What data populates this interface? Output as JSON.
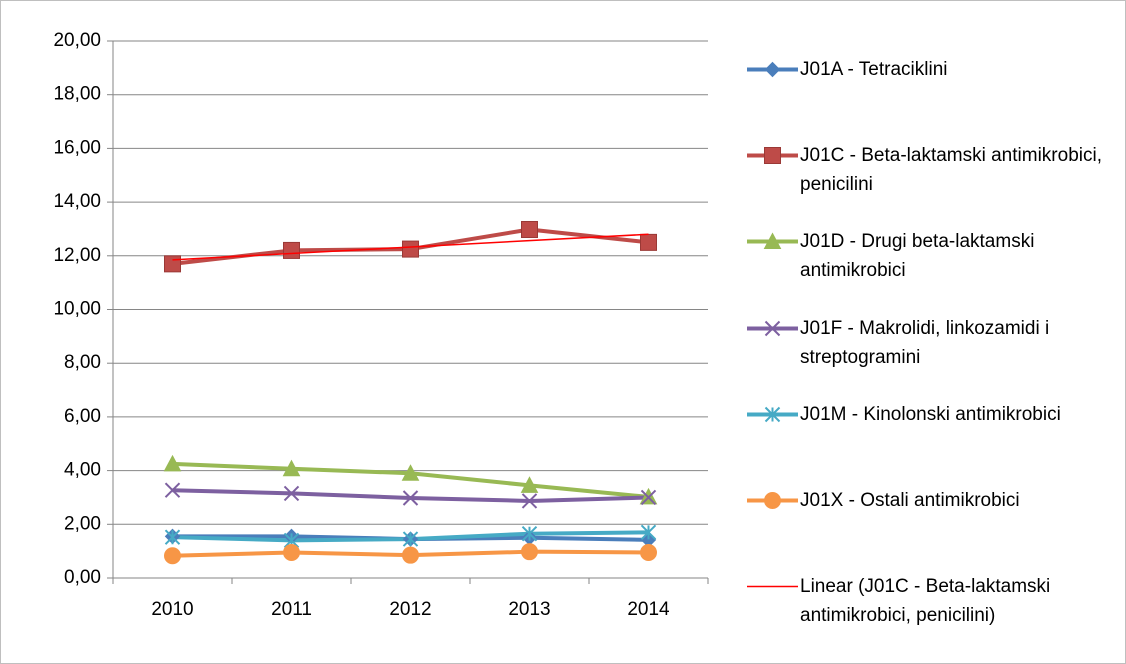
{
  "chart_data": {
    "type": "line",
    "categories": [
      "2010",
      "2011",
      "2012",
      "2013",
      "2014"
    ],
    "series": [
      {
        "name": "J01A - Tetraciklini",
        "color": "#4a7ebb",
        "marker": "diamond",
        "values": [
          1.55,
          1.55,
          1.45,
          1.5,
          1.42
        ]
      },
      {
        "name": "J01C - Beta-laktamski antimikrobici, penicilini",
        "color": "#be4b48",
        "marker": "square",
        "values": [
          11.7,
          12.2,
          12.25,
          12.98,
          12.5
        ]
      },
      {
        "name": "J01D - Drugi beta-laktamski antimikrobici",
        "color": "#98b954",
        "marker": "triangle",
        "values": [
          4.25,
          4.07,
          3.9,
          3.45,
          3.02
        ]
      },
      {
        "name": "J01F - Makrolidi, linkozamidi i streptogramini",
        "color": "#7d60a0",
        "marker": "x",
        "values": [
          3.27,
          3.15,
          2.98,
          2.87,
          3.0
        ]
      },
      {
        "name": "J01M - Kinolonski antimikrobici",
        "color": "#46aac5",
        "marker": "asterisk",
        "values": [
          1.52,
          1.4,
          1.45,
          1.65,
          1.7
        ]
      },
      {
        "name": "J01X - Ostali antimikrobici",
        "color": "#f79646",
        "marker": "circle",
        "values": [
          0.83,
          0.95,
          0.85,
          0.98,
          0.95
        ]
      }
    ],
    "trendline": {
      "name": "Linear (J01C - Beta-laktamski antimikrobici, penicilini)",
      "series": 1,
      "kind": "linear",
      "color": "#ff0000"
    },
    "ylim": [
      0,
      20
    ],
    "yticks": [
      {
        "value": 0,
        "label": "0,00"
      },
      {
        "value": 2,
        "label": "2,00"
      },
      {
        "value": 4,
        "label": "4,00"
      },
      {
        "value": 6,
        "label": "6,00"
      },
      {
        "value": 8,
        "label": "8,00"
      },
      {
        "value": 10,
        "label": "10,00"
      },
      {
        "value": 12,
        "label": "12,00"
      },
      {
        "value": 14,
        "label": "14,00"
      },
      {
        "value": 16,
        "label": "16,00"
      },
      {
        "value": 18,
        "label": "18,00"
      },
      {
        "value": 20,
        "label": "20,00"
      }
    ],
    "grid": true,
    "legend": "right"
  }
}
